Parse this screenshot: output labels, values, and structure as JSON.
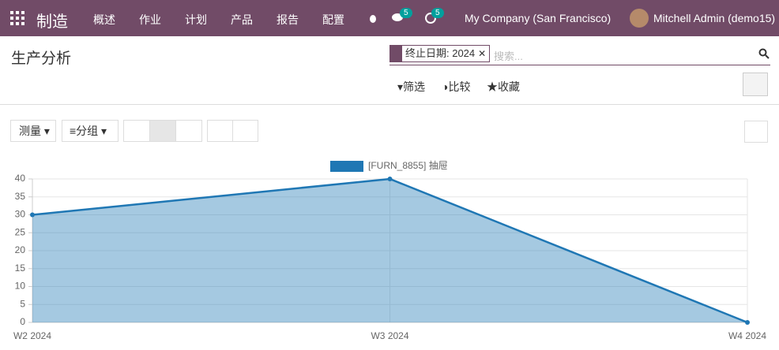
{
  "navbar": {
    "app": "制造",
    "menu": [
      "概述",
      "作业",
      "计划",
      "产品",
      "报告",
      "配置"
    ],
    "messages_badge": "5",
    "activities_badge": "5",
    "company": "My Company (San Francisco)",
    "user": "Mitchell Admin (demo15)"
  },
  "control_panel": {
    "title": "生产分析",
    "facet": "终止日期: 2024",
    "search_placeholder": "搜索...",
    "filter": "筛选",
    "compare": "比较",
    "favorites": "收藏",
    "measure": "测量",
    "group_by": "分组"
  },
  "chart_data": {
    "type": "area",
    "categories": [
      "W2 2024",
      "W3 2024",
      "W4 2024"
    ],
    "series": [
      {
        "name": "[FURN_8855] 抽屉",
        "color": "#1f77b4",
        "values": [
          30,
          40,
          0
        ]
      }
    ],
    "ylim": [
      0,
      40
    ],
    "yticks": [
      0,
      5,
      10,
      15,
      20,
      25,
      30,
      35,
      40
    ],
    "grid": true,
    "legend": "top"
  }
}
